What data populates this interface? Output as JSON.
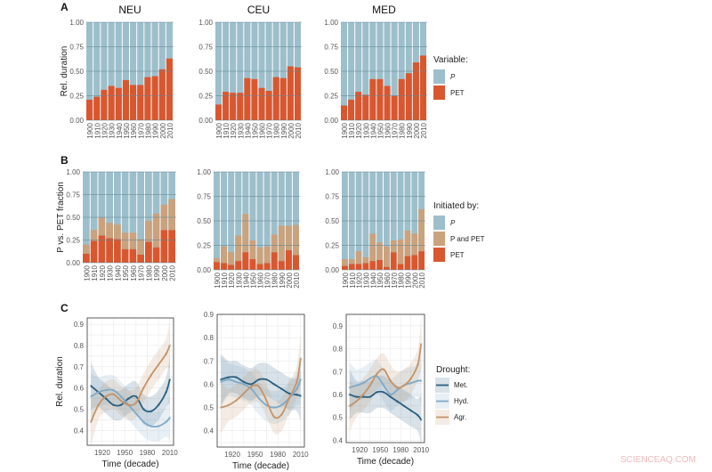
{
  "watermark": "SCIENCEAQ.COM",
  "colors": {
    "P": "#9dbfcb",
    "PET": "#d9572f",
    "P_and_PET": "#c9a27e",
    "Met": "#2b5f7f",
    "Hyd": "#80a9c6",
    "Agr": "#c4936a"
  },
  "chart_data": [
    {
      "panel": "A",
      "type": "bar",
      "stacked": true,
      "ylabel": "Rel. duration",
      "ylim": [
        0,
        1
      ],
      "yticks": [
        "0.00",
        "0.25",
        "0.50",
        "0.75",
        "1.00"
      ],
      "grid": true,
      "categories": [
        "1900",
        "1910",
        "1920",
        "1930",
        "1940",
        "1950",
        "1960",
        "1970",
        "1980",
        "1990",
        "2000",
        "2010"
      ],
      "legend": {
        "title": "Variable:",
        "entries": [
          "P",
          "PET"
        ],
        "placement": "right"
      },
      "facets": [
        {
          "title": "NEU",
          "PET": [
            0.21,
            0.24,
            0.31,
            0.35,
            0.33,
            0.41,
            0.36,
            0.36,
            0.44,
            0.45,
            0.52,
            0.63
          ]
        },
        {
          "title": "CEU",
          "PET": [
            0.16,
            0.29,
            0.28,
            0.28,
            0.43,
            0.42,
            0.33,
            0.3,
            0.44,
            0.43,
            0.55,
            0.54
          ]
        },
        {
          "title": "MED",
          "PET": [
            0.15,
            0.21,
            0.29,
            0.26,
            0.42,
            0.42,
            0.35,
            0.25,
            0.42,
            0.48,
            0.59,
            0.66
          ]
        }
      ]
    },
    {
      "panel": "B",
      "type": "bar",
      "stacked": true,
      "ylabel": "P vs. PET fraction",
      "ylim": [
        0,
        1
      ],
      "yticks": [
        "0.00",
        "0.25",
        "0.50",
        "0.75",
        "1.00"
      ],
      "grid": true,
      "categories": [
        "1900",
        "1910",
        "1920",
        "1930",
        "1940",
        "1950",
        "1960",
        "1970",
        "1980",
        "1990",
        "2000",
        "2010"
      ],
      "legend": {
        "title": "Initiated by:",
        "entries": [
          "P",
          "P and PET",
          "PET"
        ],
        "placement": "right"
      },
      "facets": [
        {
          "title": "NEU",
          "PET": [
            0.1,
            0.24,
            0.3,
            0.27,
            0.26,
            0.15,
            0.15,
            0.09,
            0.23,
            0.17,
            0.36,
            0.36
          ],
          "P_and_PET": [
            0.1,
            0.12,
            0.2,
            0.17,
            0.16,
            0.18,
            0.18,
            0.17,
            0.23,
            0.37,
            0.28,
            0.34
          ]
        },
        {
          "title": "CEU",
          "PET": [
            0.08,
            0.07,
            0.05,
            0.09,
            0.18,
            0.11,
            0.06,
            0.07,
            0.18,
            0.09,
            0.2,
            0.15
          ],
          "P_and_PET": [
            0.04,
            0.17,
            0.13,
            0.26,
            0.39,
            0.19,
            0.17,
            0.17,
            0.18,
            0.36,
            0.25,
            0.31
          ]
        },
        {
          "title": "MED",
          "PET": [
            0.04,
            0.06,
            0.06,
            0.07,
            0.09,
            0.1,
            0.03,
            0.18,
            0.06,
            0.14,
            0.15,
            0.19
          ],
          "P_and_PET": [
            0.07,
            0.05,
            0.13,
            0.06,
            0.28,
            0.18,
            0.21,
            0.12,
            0.25,
            0.26,
            0.22,
            0.43
          ]
        }
      ]
    },
    {
      "panel": "C",
      "type": "line",
      "smoothed": true,
      "confidence_bands": true,
      "xlabel": "Time (decade)",
      "ylabel": "Rel. duration",
      "xticks": [
        "1920",
        "1950",
        "1980",
        "2010"
      ],
      "x": [
        1905,
        1915,
        1925,
        1935,
        1945,
        1955,
        1965,
        1975,
        1985,
        1995,
        2005,
        2010
      ],
      "legend": {
        "title": "Drought:",
        "entries": [
          "Met.",
          "Hyd.",
          "Agr."
        ],
        "placement": "right"
      },
      "grid": true,
      "facets": [
        {
          "title": "NEU",
          "ylim": [
            0.33,
            0.93
          ],
          "yticks": [
            "0.4",
            "0.5",
            "0.6",
            "0.7",
            "0.8",
            "0.9"
          ],
          "series": [
            {
              "name": "Met.",
              "values": [
                0.61,
                0.58,
                0.55,
                0.52,
                0.52,
                0.55,
                0.56,
                0.5,
                0.49,
                0.52,
                0.58,
                0.64
              ]
            },
            {
              "name": "Hyd.",
              "values": [
                0.56,
                0.58,
                0.59,
                0.59,
                0.56,
                0.52,
                0.48,
                0.44,
                0.42,
                0.42,
                0.44,
                0.46
              ]
            },
            {
              "name": "Agr.",
              "values": [
                0.44,
                0.52,
                0.56,
                0.57,
                0.54,
                0.52,
                0.53,
                0.6,
                0.66,
                0.71,
                0.76,
                0.8
              ]
            }
          ]
        },
        {
          "title": "CEU",
          "ylim": [
            0.33,
            0.9
          ],
          "yticks": [
            "0.4",
            "0.5",
            "0.6",
            "0.7",
            "0.8",
            "0.9"
          ],
          "series": [
            {
              "name": "Met.",
              "values": [
                0.62,
                0.63,
                0.63,
                0.61,
                0.6,
                0.62,
                0.62,
                0.6,
                0.58,
                0.56,
                0.555,
                0.55
              ]
            },
            {
              "name": "Hyd.",
              "values": [
                0.61,
                0.62,
                0.61,
                0.6,
                0.58,
                0.54,
                0.51,
                0.5,
                0.51,
                0.54,
                0.58,
                0.62
              ]
            },
            {
              "name": "Agr.",
              "values": [
                0.5,
                0.51,
                0.53,
                0.56,
                0.59,
                0.59,
                0.53,
                0.46,
                0.47,
                0.54,
                0.61,
                0.71
              ]
            }
          ]
        },
        {
          "title": "MED",
          "ylim": [
            0.39,
            0.95
          ],
          "yticks": [
            "0.4",
            "0.5",
            "0.6",
            "0.7",
            "0.8",
            "0.9"
          ],
          "series": [
            {
              "name": "Met.",
              "values": [
                0.6,
                0.59,
                0.59,
                0.59,
                0.61,
                0.61,
                0.59,
                0.57,
                0.55,
                0.53,
                0.51,
                0.49
              ]
            },
            {
              "name": "Hyd.",
              "values": [
                0.63,
                0.64,
                0.65,
                0.67,
                0.68,
                0.64,
                0.6,
                0.62,
                0.64,
                0.65,
                0.66,
                0.66
              ]
            },
            {
              "name": "Agr.",
              "values": [
                0.55,
                0.57,
                0.6,
                0.64,
                0.69,
                0.71,
                0.66,
                0.63,
                0.64,
                0.67,
                0.73,
                0.82
              ]
            }
          ]
        }
      ]
    }
  ]
}
